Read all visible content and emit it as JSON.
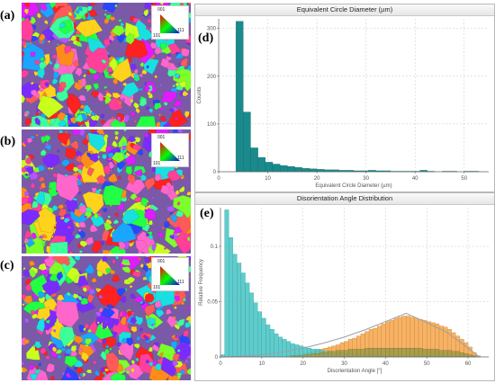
{
  "panels": {
    "a": "(a)",
    "b": "(b)",
    "c": "(c)",
    "d": "(d)",
    "e": "(e)"
  },
  "ipf_legend": {
    "top": "001",
    "left": "101",
    "right": "111"
  },
  "colors": {
    "teal": "#1a8a8c",
    "cyan": "#4fc6c6",
    "orange": "#f5a54a",
    "olive": "#a49a48",
    "curve": "#9aa0a8"
  },
  "chart_data": [
    {
      "type": "bar",
      "title": "Equivalent Circle Diameter (µm)",
      "xlabel": "Equivalent Circle Diameter (µm)",
      "ylabel": "Counts",
      "xlim": [
        0,
        55
      ],
      "ylim": [
        0,
        320
      ],
      "xticks": [
        0,
        10,
        20,
        30,
        40,
        50
      ],
      "yticks": [
        0,
        100,
        200,
        300
      ],
      "grid": true,
      "bin_width": 1.5,
      "bins_start": [
        3.5,
        5,
        6.5,
        8,
        9.5,
        11,
        12.5,
        14,
        15.5,
        17,
        18.5,
        20,
        21.5,
        23,
        24.5,
        26,
        27.5,
        29,
        30.5,
        32,
        33.5,
        35,
        36.5,
        38,
        39.5,
        41,
        42.5,
        44,
        45.5,
        47,
        48.5,
        50,
        51.5,
        53
      ],
      "values": [
        315,
        125,
        50,
        30,
        20,
        16,
        13,
        11,
        9,
        7,
        6,
        5,
        4,
        4,
        3,
        3,
        2,
        2,
        3,
        2,
        2,
        1,
        1,
        1,
        1,
        3,
        1,
        0,
        1,
        1,
        0,
        1,
        1,
        0
      ]
    },
    {
      "type": "bar",
      "title": "Disorientation Angle Distribution",
      "xlabel": "Disorientation Angle [°]",
      "ylabel": "Relative Frequency",
      "xlim": [
        0,
        65
      ],
      "ylim": [
        0,
        0.135
      ],
      "xticks": [
        0,
        10,
        20,
        30,
        40,
        50,
        60
      ],
      "yticks": [
        0,
        0.05,
        0.1
      ],
      "ytick_labels": [
        "0",
        "0.05",
        "0.1"
      ],
      "grid": true,
      "bin_width": 1,
      "series": [
        {
          "values": [
            0.002,
            0.133,
            0.108,
            0.093,
            0.085,
            0.076,
            0.067,
            0.058,
            0.049,
            0.041,
            0.035,
            0.029,
            0.025,
            0.021,
            0.018,
            0.016,
            0.014,
            0.012,
            0.011,
            0.01,
            0.009,
            0.008,
            0.007,
            0.007,
            0.006,
            0.005,
            0.005,
            0.004,
            0.004,
            0.004,
            0.003,
            0.003,
            0.003,
            0.002,
            0.002,
            0.002,
            0.002,
            0.002,
            0.002,
            0.001,
            0.001,
            0.001,
            0.001,
            0.001,
            0.001,
            0.001,
            0.001,
            0.001,
            0.001,
            0.001,
            0.001,
            0.001,
            0.001,
            0.001,
            0.001,
            0.001,
            0.001,
            0.001,
            0.001,
            0.001,
            0.001,
            0.001,
            0,
            0,
            0
          ]
        },
        {
          "values": [
            0,
            0,
            0,
            0,
            0,
            0,
            0,
            0,
            0,
            0,
            0,
            0,
            0,
            0,
            0,
            0,
            0.001,
            0.001,
            0.002,
            0.002,
            0.003,
            0.004,
            0.005,
            0.006,
            0.007,
            0.008,
            0.009,
            0.01,
            0.011,
            0.013,
            0.014,
            0.016,
            0.017,
            0.019,
            0.021,
            0.023,
            0.025,
            0.026,
            0.028,
            0.03,
            0.032,
            0.033,
            0.035,
            0.036,
            0.037,
            0.037,
            0.036,
            0.035,
            0.034,
            0.033,
            0.032,
            0.031,
            0.03,
            0.028,
            0.027,
            0.025,
            0.022,
            0.019,
            0.016,
            0.013,
            0.009,
            0.004,
            0.001,
            0,
            0
          ]
        },
        {
          "values": [
            0,
            0,
            0,
            0,
            0,
            0,
            0,
            0,
            0,
            0,
            0,
            0,
            0,
            0,
            0,
            0,
            0,
            0.001,
            0.001,
            0.001,
            0.002,
            0.002,
            0.003,
            0.003,
            0.004,
            0.004,
            0.005,
            0.005,
            0.006,
            0.006,
            0.006,
            0.007,
            0.007,
            0.007,
            0.007,
            0.008,
            0.008,
            0.008,
            0.008,
            0.008,
            0.008,
            0.008,
            0.008,
            0.008,
            0.008,
            0.008,
            0.008,
            0.008,
            0.008,
            0.007,
            0.007,
            0.007,
            0.007,
            0.006,
            0.006,
            0.006,
            0.005,
            0.005,
            0.004,
            0.003,
            0.002,
            0.001,
            0,
            0,
            0
          ]
        }
      ],
      "curve": {
        "x": [
          0,
          5,
          10,
          15,
          20,
          25,
          30,
          35,
          40,
          45,
          50,
          55,
          60,
          62.8
        ],
        "y": [
          0,
          0.0005,
          0.002,
          0.0045,
          0.008,
          0.0125,
          0.018,
          0.0245,
          0.032,
          0.0395,
          0.031,
          0.022,
          0.008,
          0
        ]
      }
    }
  ]
}
